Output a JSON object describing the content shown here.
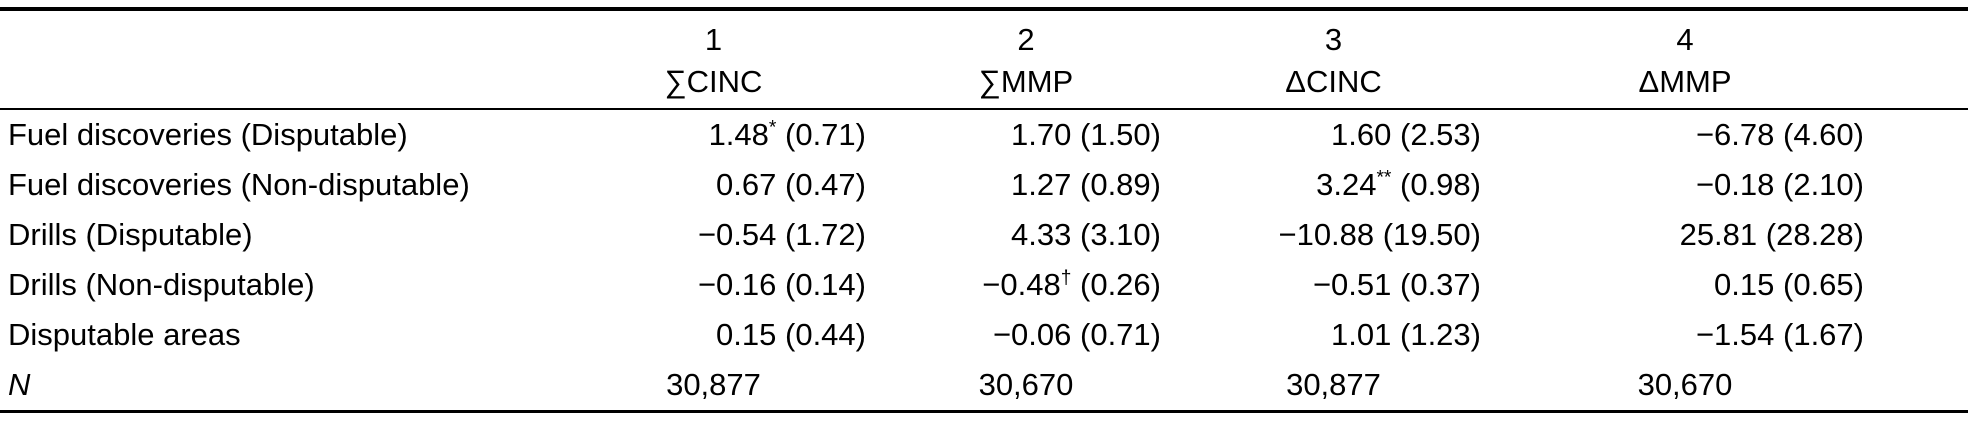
{
  "table": {
    "header": {
      "label_column": "",
      "columns": [
        {
          "number": "1",
          "label": "∑CINC"
        },
        {
          "number": "2",
          "label": "∑MMP"
        },
        {
          "number": "3",
          "label": "ΔCINC"
        },
        {
          "number": "4",
          "label": "ΔMMP"
        }
      ]
    },
    "rows": [
      {
        "label": "Fuel discoveries (Disputable)",
        "cells": [
          {
            "coef": "1.48",
            "sup": "*",
            "se": "(0.71)"
          },
          {
            "coef": "1.70",
            "sup": "",
            "se": "(1.50)"
          },
          {
            "coef": "1.60",
            "sup": "",
            "se": "(2.53)"
          },
          {
            "coef": "−6.78",
            "sup": "",
            "se": "(4.60)"
          }
        ]
      },
      {
        "label": "Fuel discoveries (Non-disputable)",
        "cells": [
          {
            "coef": "0.67",
            "sup": "",
            "se": "(0.47)"
          },
          {
            "coef": "1.27",
            "sup": "",
            "se": "(0.89)"
          },
          {
            "coef": "3.24",
            "sup": "**",
            "se": "(0.98)"
          },
          {
            "coef": "−0.18",
            "sup": "",
            "se": "(2.10)"
          }
        ]
      },
      {
        "label": "Drills (Disputable)",
        "cells": [
          {
            "coef": "−0.54",
            "sup": "",
            "se": "(1.72)"
          },
          {
            "coef": "4.33",
            "sup": "",
            "se": "(3.10)"
          },
          {
            "coef": "−10.88",
            "sup": "",
            "se": "(19.50)"
          },
          {
            "coef": "25.81",
            "sup": "",
            "se": "(28.28)"
          }
        ]
      },
      {
        "label": "Drills (Non-disputable)",
        "cells": [
          {
            "coef": "−0.16",
            "sup": "",
            "se": "(0.14)"
          },
          {
            "coef": "−0.48",
            "sup": "†",
            "se": "(0.26)"
          },
          {
            "coef": "−0.51",
            "sup": "",
            "se": "(0.37)"
          },
          {
            "coef": "0.15",
            "sup": "",
            "se": "(0.65)"
          }
        ]
      },
      {
        "label": "Disputable areas",
        "cells": [
          {
            "coef": "0.15",
            "sup": "",
            "se": "(0.44)"
          },
          {
            "coef": "−0.06",
            "sup": "",
            "se": "(0.71)"
          },
          {
            "coef": "1.01",
            "sup": "",
            "se": "(1.23)"
          },
          {
            "coef": "−1.54",
            "sup": "",
            "se": "(1.67)"
          }
        ]
      }
    ],
    "n_row": {
      "label": "N",
      "values": [
        "30,877",
        "30,670",
        "30,877",
        "30,670"
      ]
    }
  },
  "colors": {
    "background": "#ffffff",
    "text": "#000000",
    "rule": "#000000"
  }
}
